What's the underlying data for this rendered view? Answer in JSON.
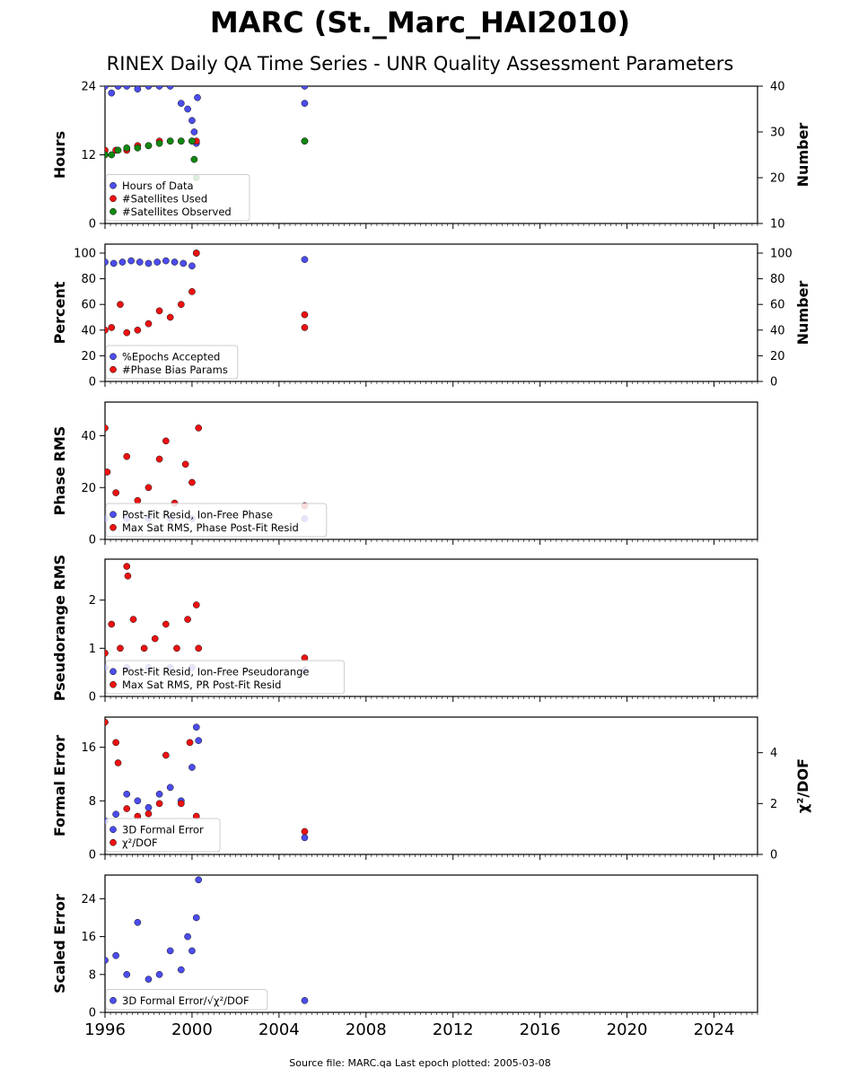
{
  "title": "MARC (St._Marc_HAI2010)",
  "subtitle": "RINEX Daily QA Time Series - UNR Quality Assessment Parameters",
  "footer": "Source file: MARC.qa Last epoch plotted: 2005-03-08",
  "colors": {
    "blue": "#4c4cee",
    "red": "#ee1111",
    "green": "#118811"
  },
  "chart_data": [
    {
      "type": "scatter",
      "ylabel": "Hours",
      "ylabel_right": "Number",
      "ylim": [
        0,
        24
      ],
      "yticks": [
        0,
        12,
        24
      ],
      "ylim_right": [
        10,
        40
      ],
      "yticks_right": [
        10,
        20,
        30,
        40
      ],
      "legend_position": "lower-left",
      "series": [
        {
          "name": "Hours of Data",
          "color": "blue",
          "axis": "left",
          "x": [
            1996.0,
            1996.3,
            1996.6,
            1997.0,
            1997.5,
            1998.0,
            1998.5,
            1999.0,
            1999.5,
            1999.8,
            2000.0,
            2000.1,
            2000.2,
            2000.25,
            2005.18,
            2005.18
          ],
          "y": [
            24,
            22.8,
            24,
            24,
            23.5,
            24,
            24,
            24,
            21,
            20,
            18,
            16,
            14,
            22,
            24,
            21
          ]
        },
        {
          "name": "#Satellites Used",
          "color": "red",
          "axis": "right",
          "x": [
            1996.0,
            1996.5,
            1997.0,
            1997.5,
            1998.0,
            1998.5,
            1999.0,
            1999.5,
            2000.0,
            2000.2,
            2005.18
          ],
          "y": [
            26,
            26,
            26,
            27,
            27,
            28,
            28,
            28,
            28,
            28,
            28
          ]
        },
        {
          "name": "#Satellites Observed",
          "color": "green",
          "axis": "right",
          "x": [
            1996.0,
            1996.3,
            1996.6,
            1997.0,
            1997.5,
            1998.0,
            1998.5,
            1999.0,
            1999.5,
            2000.0,
            2000.1,
            2000.2,
            2005.18
          ],
          "y": [
            25,
            25,
            26,
            26.5,
            26.5,
            27,
            27.5,
            28,
            28,
            28,
            24,
            20,
            28
          ]
        }
      ]
    },
    {
      "type": "scatter",
      "ylabel": "Percent",
      "ylabel_right": "Number",
      "ylim": [
        0,
        107
      ],
      "yticks": [
        0,
        20,
        40,
        60,
        80,
        100
      ],
      "ylim_right": [
        0,
        107
      ],
      "yticks_right": [
        0,
        20,
        40,
        60,
        80,
        100
      ],
      "legend_position": "lower-left",
      "series": [
        {
          "name": "%Epochs Accepted",
          "color": "blue",
          "axis": "left",
          "x": [
            1996.0,
            1996.4,
            1996.8,
            1997.2,
            1997.6,
            1998.0,
            1998.4,
            1998.8,
            1999.2,
            1999.6,
            2000.0,
            2000.2,
            2005.18
          ],
          "y": [
            93,
            92,
            93,
            94,
            93,
            92,
            93,
            94,
            93,
            92,
            90,
            100,
            95
          ]
        },
        {
          "name": "#Phase Bias Params",
          "color": "red",
          "axis": "right",
          "x": [
            1996.0,
            1996.3,
            1996.7,
            1997.0,
            1997.5,
            1998.0,
            1998.5,
            1999.0,
            1999.5,
            2000.0,
            2000.2,
            2005.18,
            2005.18
          ],
          "y": [
            40,
            42,
            60,
            38,
            40,
            45,
            55,
            50,
            60,
            70,
            100,
            52,
            42
          ]
        }
      ]
    },
    {
      "type": "scatter",
      "ylabel": "Phase RMS",
      "ylim": [
        0,
        53
      ],
      "yticks": [
        0,
        20,
        40
      ],
      "legend_position": "lower-left",
      "series": [
        {
          "name": "Post-Fit Resid, Ion-Free Phase",
          "color": "blue",
          "axis": "left",
          "x": [
            1996.0,
            1997.0,
            1998.0,
            1999.0,
            2000.0,
            2005.18
          ],
          "y": [
            8,
            8,
            8,
            8,
            8,
            8
          ]
        },
        {
          "name": "Max Sat RMS, Phase Post-Fit Resid",
          "color": "red",
          "axis": "left",
          "x": [
            1996.0,
            1996.1,
            1996.5,
            1997.0,
            1997.5,
            1998.0,
            1998.5,
            1998.8,
            1999.2,
            1999.7,
            2000.0,
            2000.3,
            2005.18
          ],
          "y": [
            43,
            26,
            18,
            32,
            15,
            20,
            31,
            38,
            14,
            29,
            22,
            43,
            13
          ]
        }
      ]
    },
    {
      "type": "scatter",
      "ylabel": "Pseudorange RMS",
      "ylim": [
        0,
        2.85
      ],
      "yticks": [
        0,
        1,
        2
      ],
      "legend_position": "lower-left",
      "series": [
        {
          "name": "Post-Fit Resid, Ion-Free Pseudorange",
          "color": "blue",
          "axis": "left",
          "x": [
            1996.0,
            1997.0,
            1998.0,
            1999.0,
            2000.0,
            2005.18
          ],
          "y": [
            0.6,
            0.6,
            0.6,
            0.6,
            0.6,
            0.55
          ]
        },
        {
          "name": "Max Sat RMS, PR Post-Fit Resid",
          "color": "red",
          "axis": "left",
          "x": [
            1996.0,
            1996.3,
            1996.7,
            1997.0,
            1997.05,
            1997.3,
            1997.8,
            1998.3,
            1998.8,
            1999.3,
            1999.8,
            2000.2,
            2000.3,
            2005.18
          ],
          "y": [
            0.9,
            1.5,
            1.0,
            2.7,
            2.5,
            1.6,
            1.0,
            1.2,
            1.5,
            1.0,
            1.6,
            1.9,
            1.0,
            0.8
          ]
        }
      ]
    },
    {
      "type": "scatter",
      "ylabel": "Formal Error",
      "ylabel_right": "χ²/DOF",
      "ylim": [
        0,
        20.5
      ],
      "yticks": [
        0,
        8,
        16
      ],
      "ylim_right": [
        0,
        5.4
      ],
      "yticks_right": [
        0,
        2,
        4
      ],
      "legend_position": "lower-left",
      "series": [
        {
          "name": "3D Formal Error",
          "color": "blue",
          "axis": "left",
          "x": [
            1996.0,
            1996.5,
            1997.0,
            1997.5,
            1998.0,
            1998.5,
            1999.0,
            1999.5,
            2000.0,
            2000.2,
            2000.3,
            2005.18
          ],
          "y": [
            5,
            6,
            9,
            8,
            7,
            9,
            10,
            8,
            13,
            19,
            17,
            2.5
          ]
        },
        {
          "name": "χ²/DOF",
          "color": "red",
          "axis": "right",
          "x": [
            1996.0,
            1996.5,
            1996.6,
            1997.0,
            1997.5,
            1998.0,
            1998.5,
            1998.8,
            1999.5,
            1999.9,
            2000.2,
            2005.18
          ],
          "y": [
            5.2,
            4.4,
            3.6,
            1.8,
            1.5,
            1.6,
            2.0,
            3.9,
            2.0,
            4.4,
            1.5,
            0.9
          ]
        }
      ]
    },
    {
      "type": "scatter",
      "ylabel": "Scaled Error",
      "ylim": [
        0,
        29
      ],
      "yticks": [
        0,
        8,
        16,
        24
      ],
      "legend_position": "lower-left",
      "xlim": [
        1996,
        2026
      ],
      "xticks": [
        1996,
        2000,
        2004,
        2008,
        2012,
        2016,
        2020,
        2024
      ],
      "series": [
        {
          "name": "3D Formal Error/√χ²/DOF",
          "color": "blue",
          "axis": "left",
          "x": [
            1996.0,
            1996.5,
            1997.0,
            1997.5,
            1998.0,
            1998.5,
            1999.0,
            1999.5,
            1999.8,
            2000.0,
            2000.2,
            2000.3,
            2005.18
          ],
          "y": [
            11,
            12,
            8,
            19,
            7,
            8,
            13,
            9,
            16,
            13,
            20,
            28,
            2.5
          ]
        }
      ]
    }
  ]
}
